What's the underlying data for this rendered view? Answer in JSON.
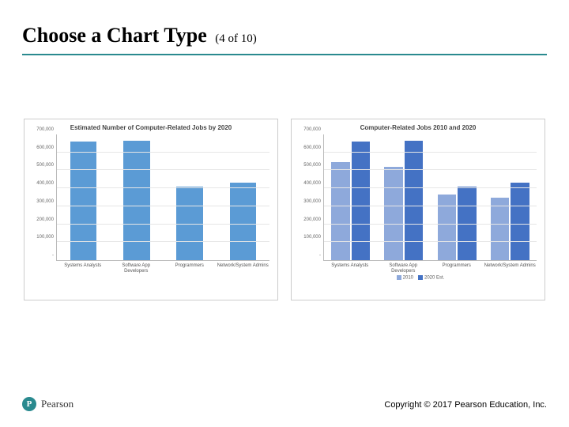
{
  "title": {
    "main": "Choose a Chart Type",
    "sub": "(4 of 10)",
    "underline_color": "#2a8a8f"
  },
  "chart_left": {
    "type": "bar",
    "title": "Estimated Number of Computer-Related Jobs by 2020",
    "categories": [
      "Systems Analysts",
      "Software App Developers",
      "Programmers",
      "Network/System Admins"
    ],
    "values": [
      660000,
      665000,
      410000,
      430000
    ],
    "bar_color": "#5b9bd5",
    "ylim_max": 700000,
    "ytick_step": 100000,
    "grid_color": "#e6e6e6",
    "axis_color": "#bbbbbb",
    "tick_label_color": "#666666",
    "title_fontsize": 8,
    "tick_fontsize": 6
  },
  "chart_right": {
    "type": "grouped-bar",
    "title": "Computer-Related Jobs 2010 and 2020",
    "categories": [
      "Systems Analysts",
      "Software App Developers",
      "Programmers",
      "Network/System Admins"
    ],
    "series": [
      {
        "name": "2010",
        "color": "#8ea9db",
        "values": [
          545000,
          520000,
          365000,
          350000
        ]
      },
      {
        "name": "2020 Est.",
        "color": "#4472c4",
        "values": [
          660000,
          665000,
          410000,
          430000
        ]
      }
    ],
    "ylim_max": 700000,
    "ytick_step": 100000,
    "grid_color": "#e6e6e6",
    "axis_color": "#bbbbbb",
    "tick_label_color": "#666666",
    "title_fontsize": 8,
    "tick_fontsize": 6
  },
  "footer": {
    "logo_letter": "P",
    "logo_bg": "#2a8a8f",
    "logo_text": "Pearson",
    "copyright": "Copyright © 2017 Pearson Education, Inc."
  }
}
